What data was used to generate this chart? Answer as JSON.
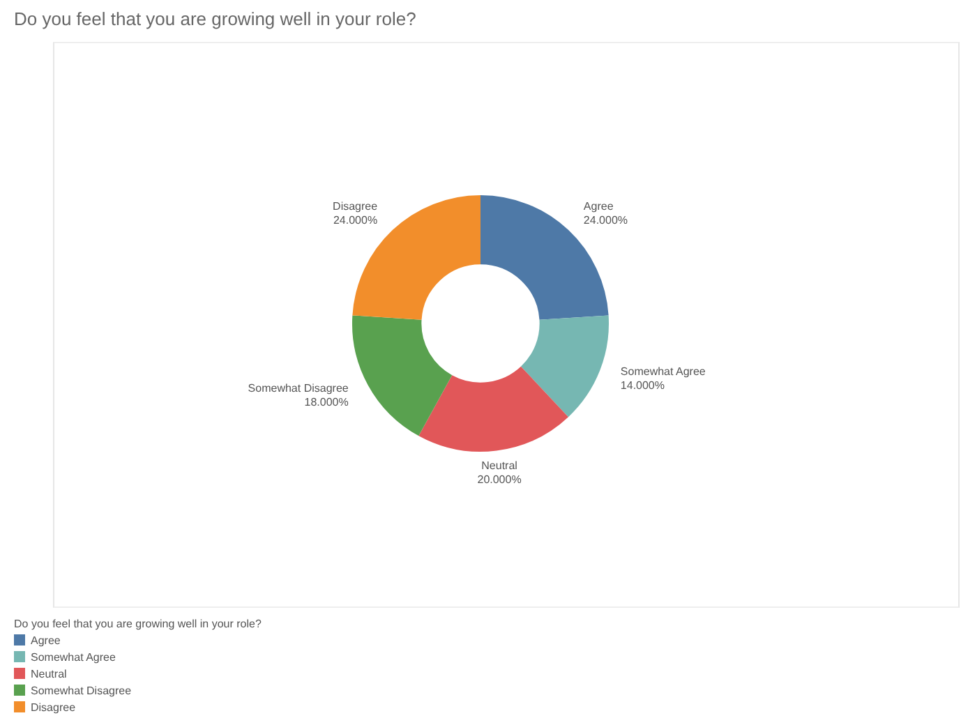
{
  "chart_data": {
    "type": "donut",
    "title": "Do you feel that you are growing well in your role?",
    "legend_title": "Do you feel that you are growing well in your role?",
    "legend": "bottom left",
    "categories": [
      "Agree",
      "Somewhat Agree",
      "Neutral",
      "Somewhat Disagree",
      "Disagree"
    ],
    "values": [
      24,
      14,
      20,
      18,
      24
    ],
    "value_labels": [
      "24.000%",
      "14.000%",
      "20.000%",
      "18.000%",
      "24.000%"
    ],
    "colors": [
      "#4e79a7",
      "#76b7b2",
      "#e15759",
      "#59a14f",
      "#f28e2b"
    ]
  }
}
